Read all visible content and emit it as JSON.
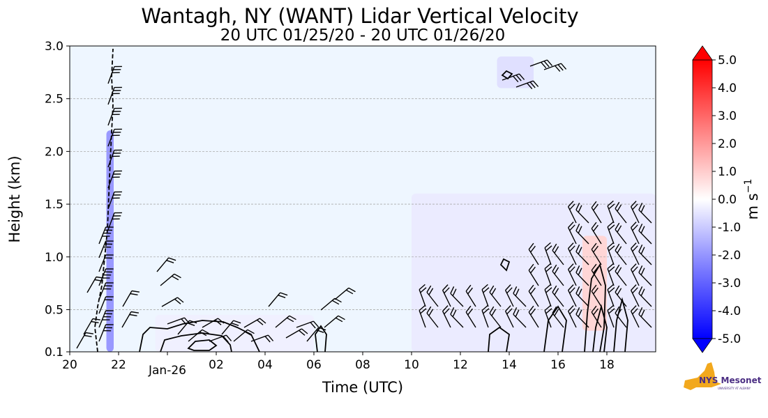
{
  "chart_data": {
    "type": "heatmap",
    "title": "Wantagh, NY (WANT) Lidar Vertical Velocity",
    "subtitle": "20 UTC 01/25/20 - 20 UTC 01/26/20",
    "xlabel": "Time (UTC)",
    "ylabel": "Height (km)",
    "x_range_hours": [
      0,
      24
    ],
    "x_ticks": [
      {
        "hour": 0,
        "label": "20"
      },
      {
        "hour": 2,
        "label": "22"
      },
      {
        "hour": 4,
        "label": "Jan-26"
      },
      {
        "hour": 6,
        "label": "02"
      },
      {
        "hour": 8,
        "label": "04"
      },
      {
        "hour": 10,
        "label": "06"
      },
      {
        "hour": 12,
        "label": "08"
      },
      {
        "hour": 14,
        "label": "10"
      },
      {
        "hour": 16,
        "label": "12"
      },
      {
        "hour": 18,
        "label": "14"
      },
      {
        "hour": 20,
        "label": "16"
      },
      {
        "hour": 22,
        "label": "18"
      }
    ],
    "ylim": [
      0.1,
      3.0
    ],
    "y_ticks": [
      {
        "value": 0.1,
        "label": "0.1"
      },
      {
        "value": 0.5,
        "label": "0.5"
      },
      {
        "value": 1.0,
        "label": "1.0"
      },
      {
        "value": 1.5,
        "label": "1.5"
      },
      {
        "value": 2.0,
        "label": "2.0"
      },
      {
        "value": 2.5,
        "label": "2.5"
      },
      {
        "value": 3.0,
        "label": "3.0"
      }
    ],
    "grid": "horizontal dashed",
    "colorbar": {
      "label": "m s",
      "label_exponent": "−1",
      "range": [
        -5.0,
        5.0
      ],
      "tick_labels": [
        "5.0",
        "4.0",
        "3.0",
        "2.0",
        "1.0",
        "0.0",
        "-1.0",
        "-2.0",
        "-3.0",
        "-4.0",
        "-5.0"
      ],
      "colormap": "bwr",
      "colors": {
        "negative": "#0000ff",
        "zero": "#ffffff",
        "positive": "#ff0000"
      }
    },
    "background_color": "#eef6ff",
    "regions": [
      {
        "name": "early-column",
        "hours": [
          1.5,
          1.8
        ],
        "height_km": [
          0.1,
          2.2
        ],
        "velocity": -2.0
      },
      {
        "name": "low-layer-early",
        "hours": [
          3.5,
          10.0
        ],
        "height_km": [
          0.1,
          0.45
        ],
        "velocity": -0.3
      },
      {
        "name": "upper-cloud-patch",
        "hours": [
          17.5,
          19.0
        ],
        "height_km": [
          2.6,
          2.9
        ],
        "velocity": -0.6
      },
      {
        "name": "boundary-layer-afternoon",
        "hours": [
          14.0,
          24.0
        ],
        "height_km": [
          0.1,
          1.6
        ],
        "velocity": -0.4
      },
      {
        "name": "updraft-core",
        "hours": [
          21.0,
          22.0
        ],
        "height_km": [
          0.3,
          1.2
        ],
        "velocity": 0.8
      }
    ],
    "wind_barbs_present": true,
    "contours_present": true
  },
  "logo": {
    "text": "NYS Mesonet",
    "subtext": "UNIVERSITY AT ALBANY"
  }
}
